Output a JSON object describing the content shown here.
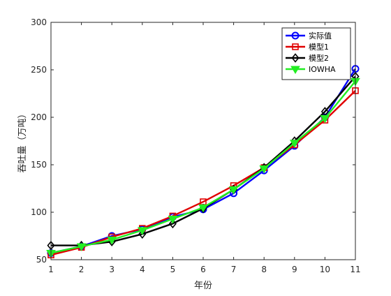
{
  "chart_data": {
    "type": "line",
    "title": "",
    "xlabel": "年份",
    "ylabel": "吞吐量（万吨）",
    "xlim": [
      1,
      11
    ],
    "ylim": [
      50,
      300
    ],
    "xticks": [
      1,
      2,
      3,
      4,
      5,
      6,
      7,
      8,
      9,
      10,
      11
    ],
    "yticks": [
      50,
      100,
      150,
      200,
      250,
      300
    ],
    "grid": false,
    "legend_position": "top-right",
    "x": [
      1,
      2,
      3,
      4,
      5,
      6,
      7,
      8,
      9,
      10,
      11
    ],
    "series": [
      {
        "name": "实际值",
        "color": "#0000ff",
        "marker": "circle",
        "values": [
          57,
          64,
          75,
          82,
          95,
          103,
          120,
          144,
          170,
          200,
          251
        ]
      },
      {
        "name": "模型1",
        "color": "#e00000",
        "marker": "square",
        "values": [
          55,
          63,
          74,
          83,
          96,
          111,
          128,
          147,
          171,
          197,
          228
        ]
      },
      {
        "name": "模型2",
        "color": "#000000",
        "marker": "diamond",
        "values": [
          65,
          65,
          69,
          77,
          88,
          104,
          124,
          147,
          175,
          206,
          243
        ]
      },
      {
        "name": "IOWHA",
        "color": "#22ee22",
        "marker": "triangle-down",
        "values": [
          57,
          64,
          71,
          81,
          93,
          105,
          124,
          146,
          173,
          199,
          238
        ]
      }
    ]
  }
}
